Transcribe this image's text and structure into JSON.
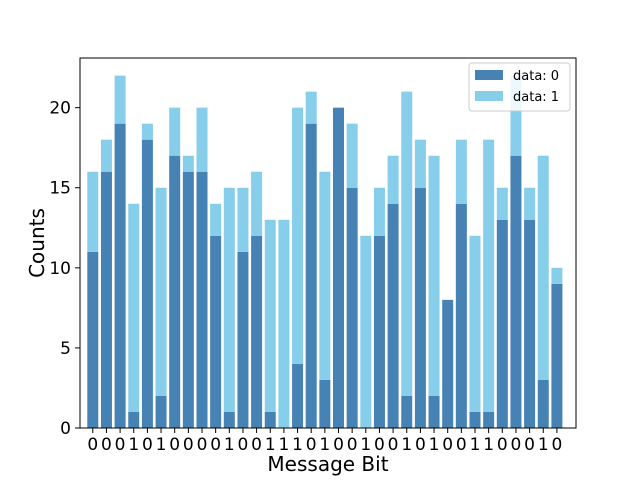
{
  "chart_data": {
    "type": "bar",
    "stacked": true,
    "categories": [
      "0",
      "0",
      "0",
      "1",
      "0",
      "1",
      "0",
      "0",
      "0",
      "0",
      "1",
      "0",
      "0",
      "1",
      "1",
      "1",
      "0",
      "1",
      "0",
      "0",
      "1",
      "0",
      "0",
      "1",
      "0",
      "1",
      "0",
      "0",
      "1",
      "1",
      "0",
      "0",
      "0",
      "1",
      "0"
    ],
    "series": [
      {
        "name": "data: 0",
        "color": "#4682b4",
        "values": [
          11,
          16,
          19,
          1,
          18,
          2,
          17,
          16,
          16,
          12,
          1,
          11,
          12,
          1,
          0,
          4,
          19,
          3,
          20,
          15,
          0,
          12,
          14,
          2,
          15,
          2,
          8,
          14,
          1,
          1,
          13,
          17,
          13,
          3,
          9
        ]
      },
      {
        "name": "data: 1",
        "color": "#87ceeb",
        "values": [
          5,
          2,
          3,
          13,
          1,
          13,
          3,
          1,
          4,
          2,
          14,
          4,
          4,
          12,
          13,
          16,
          2,
          13,
          0,
          4,
          12,
          3,
          3,
          19,
          3,
          15,
          0,
          4,
          11,
          17,
          2,
          5,
          2,
          14,
          1
        ]
      }
    ],
    "title": "",
    "xlabel": "Message Bit",
    "ylabel": "Counts",
    "ylim": [
      0,
      23.1
    ],
    "yticks": [
      0,
      5,
      10,
      15,
      20
    ],
    "grid": false,
    "legend": "top-right"
  }
}
